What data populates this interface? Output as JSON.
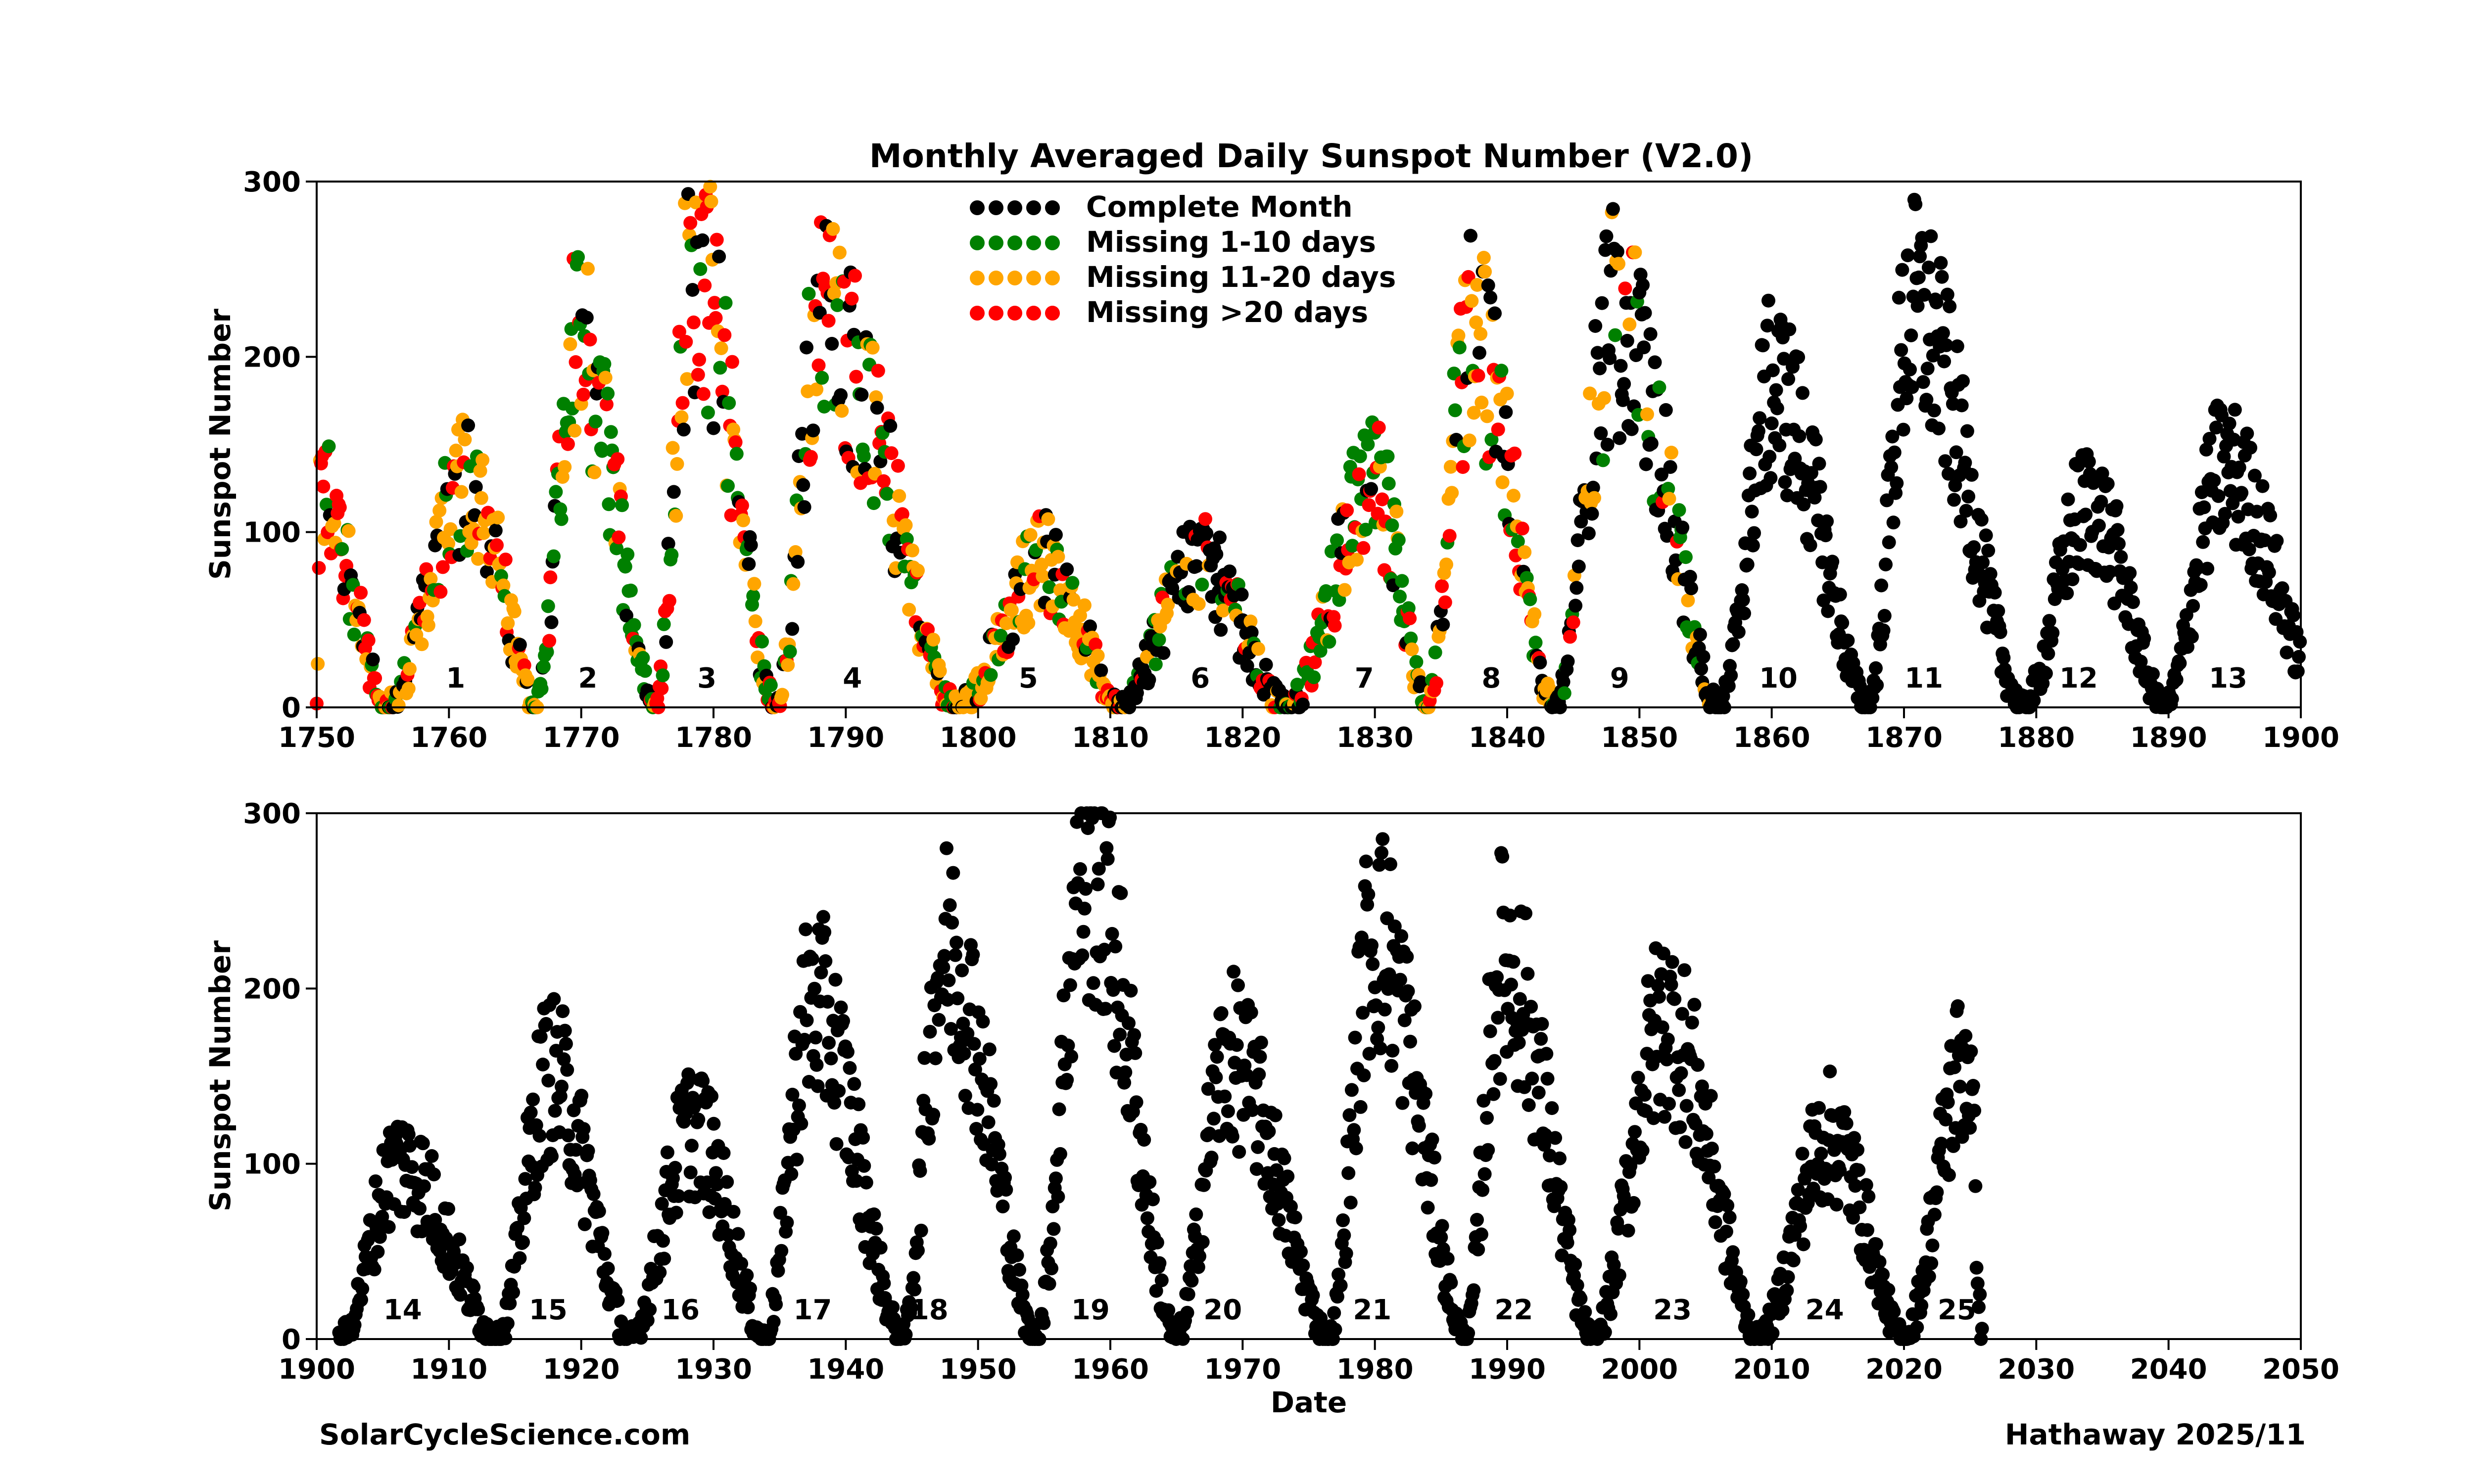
{
  "chart_data": [
    {
      "type": "scatter",
      "title": "Monthly Averaged Daily Sunspot Number (V2.0)",
      "xlabel": "",
      "ylabel": "Sunspot Number",
      "xlim": [
        1750,
        1900
      ],
      "ylim": [
        0,
        300
      ],
      "xticks": [
        1750,
        1760,
        1770,
        1780,
        1790,
        1800,
        1810,
        1820,
        1830,
        1840,
        1850,
        1860,
        1870,
        1880,
        1890,
        1900
      ],
      "yticks": [
        0,
        100,
        200,
        300
      ],
      "legend": {
        "placement": "top-center",
        "entries": [
          {
            "label": "Complete Month",
            "color": "#000000"
          },
          {
            "label": "Missing 1-10 days",
            "color": "#008000"
          },
          {
            "label": "Missing 11-20 days",
            "color": "#FFA500"
          },
          {
            "label": "Missing >20 days",
            "color": "#FF0000"
          }
        ]
      },
      "cycles": [
        {
          "label": "1",
          "x": 1760.5
        },
        {
          "label": "2",
          "x": 1770.5
        },
        {
          "label": "3",
          "x": 1779.5
        },
        {
          "label": "4",
          "x": 1790.5
        },
        {
          "label": "5",
          "x": 1803.8
        },
        {
          "label": "6",
          "x": 1816.8
        },
        {
          "label": "7",
          "x": 1829.2
        },
        {
          "label": "8",
          "x": 1838.8
        },
        {
          "label": "9",
          "x": 1848.5
        },
        {
          "label": "10",
          "x": 1860.5
        },
        {
          "label": "11",
          "x": 1871.5
        },
        {
          "label": "12",
          "x": 1883.2
        },
        {
          "label": "13",
          "x": 1894.5
        }
      ],
      "cycle_shapes": [
        {
          "start": 1750.0,
          "end": 1755.2,
          "peak": 1750.3,
          "amp": 120,
          "dominant": "red",
          "mix": 0.45
        },
        {
          "start": 1755.2,
          "end": 1766.5,
          "peak": 1761.5,
          "amp": 130,
          "dominant": "orange",
          "mix": 0.5
        },
        {
          "start": 1766.5,
          "end": 1775.5,
          "peak": 1769.7,
          "amp": 200,
          "dominant": "green",
          "mix": 0.5
        },
        {
          "start": 1775.5,
          "end": 1784.7,
          "peak": 1778.4,
          "amp": 250,
          "dominant": "red",
          "mix": 0.3
        },
        {
          "start": 1784.7,
          "end": 1798.3,
          "peak": 1788.1,
          "amp": 220,
          "dominant": "red",
          "mix": 0.25
        },
        {
          "start": 1798.3,
          "end": 1810.6,
          "peak": 1805.0,
          "amp": 82,
          "dominant": "orange",
          "mix": 0.6
        },
        {
          "start": 1810.6,
          "end": 1823.3,
          "peak": 1816.4,
          "amp": 82,
          "dominant": "black",
          "mix": 0.6
        },
        {
          "start": 1823.3,
          "end": 1833.9,
          "peak": 1829.9,
          "amp": 125,
          "dominant": "green",
          "mix": 0.5
        },
        {
          "start": 1833.9,
          "end": 1843.5,
          "peak": 1837.2,
          "amp": 210,
          "dominant": "orange",
          "mix": 0.45
        },
        {
          "start": 1843.5,
          "end": 1856.0,
          "peak": 1848.1,
          "amp": 220,
          "dominant": "black",
          "mix": 0.7
        },
        {
          "start": 1856.0,
          "end": 1867.2,
          "peak": 1860.1,
          "amp": 180,
          "dominant": "black",
          "mix": 1.0
        },
        {
          "start": 1867.2,
          "end": 1878.9,
          "peak": 1870.6,
          "amp": 225,
          "dominant": "black",
          "mix": 1.0
        },
        {
          "start": 1878.9,
          "end": 1889.6,
          "peak": 1883.9,
          "amp": 115,
          "dominant": "black",
          "mix": 1.0
        },
        {
          "start": 1889.6,
          "end": 1901.7,
          "peak": 1894.1,
          "amp": 135,
          "dominant": "black",
          "mix": 1.0
        }
      ]
    },
    {
      "type": "scatter",
      "title": "",
      "xlabel": "Date",
      "ylabel": "Sunspot Number",
      "xlim": [
        1900,
        2050
      ],
      "ylim": [
        0,
        300
      ],
      "xticks": [
        1900,
        1910,
        1920,
        1930,
        1940,
        1950,
        1960,
        1970,
        1980,
        1990,
        2000,
        2010,
        2020,
        2030,
        2040,
        2050
      ],
      "yticks": [
        0,
        100,
        200,
        300
      ],
      "cycles": [
        {
          "label": "14",
          "x": 1906.5
        },
        {
          "label": "15",
          "x": 1917.5
        },
        {
          "label": "16",
          "x": 1927.5
        },
        {
          "label": "17",
          "x": 1937.5
        },
        {
          "label": "18",
          "x": 1946.3
        },
        {
          "label": "19",
          "x": 1958.5
        },
        {
          "label": "20",
          "x": 1968.5
        },
        {
          "label": "21",
          "x": 1979.8
        },
        {
          "label": "22",
          "x": 1990.5
        },
        {
          "label": "23",
          "x": 2002.5
        },
        {
          "label": "24",
          "x": 2014.0
        },
        {
          "label": "25",
          "x": 2024.0
        }
      ],
      "cycle_shapes": [
        {
          "start": 1901.7,
          "end": 1913.6,
          "peak": 1906.2,
          "amp": 100,
          "dominant": "black",
          "mix": 1.0
        },
        {
          "start": 1913.6,
          "end": 1923.6,
          "peak": 1917.6,
          "amp": 150,
          "dominant": "black",
          "mix": 1.0
        },
        {
          "start": 1923.6,
          "end": 1933.8,
          "peak": 1928.4,
          "amp": 120,
          "dominant": "black",
          "mix": 1.0
        },
        {
          "start": 1933.8,
          "end": 1944.2,
          "peak": 1937.4,
          "amp": 190,
          "dominant": "black",
          "mix": 1.0
        },
        {
          "start": 1944.2,
          "end": 1954.3,
          "peak": 1947.5,
          "amp": 220,
          "dominant": "black",
          "mix": 1.0
        },
        {
          "start": 1954.3,
          "end": 1964.9,
          "peak": 1958.2,
          "amp": 270,
          "dominant": "black",
          "mix": 1.0
        },
        {
          "start": 1964.9,
          "end": 1976.5,
          "peak": 1968.9,
          "amp": 160,
          "dominant": "black",
          "mix": 1.0
        },
        {
          "start": 1976.5,
          "end": 1986.8,
          "peak": 1979.9,
          "amp": 230,
          "dominant": "black",
          "mix": 1.0
        },
        {
          "start": 1986.8,
          "end": 1996.4,
          "peak": 1989.6,
          "amp": 215,
          "dominant": "black",
          "mix": 1.0
        },
        {
          "start": 1996.4,
          "end": 2008.9,
          "peak": 2001.9,
          "amp": 180,
          "dominant": "black",
          "mix": 1.0
        },
        {
          "start": 2008.9,
          "end": 2019.9,
          "peak": 2014.3,
          "amp": 115,
          "dominant": "black",
          "mix": 1.0
        },
        {
          "start": 2019.9,
          "end": 2025.9,
          "peak": 2024.8,
          "amp": 160,
          "dominant": "black",
          "mix": 1.0
        }
      ]
    }
  ],
  "footer": {
    "left": "SolarCycleScience.com",
    "right": "Hathaway 2025/11"
  },
  "colors": {
    "black": "#000000",
    "green": "#008000",
    "orange": "#FFA500",
    "red": "#FF0000"
  }
}
